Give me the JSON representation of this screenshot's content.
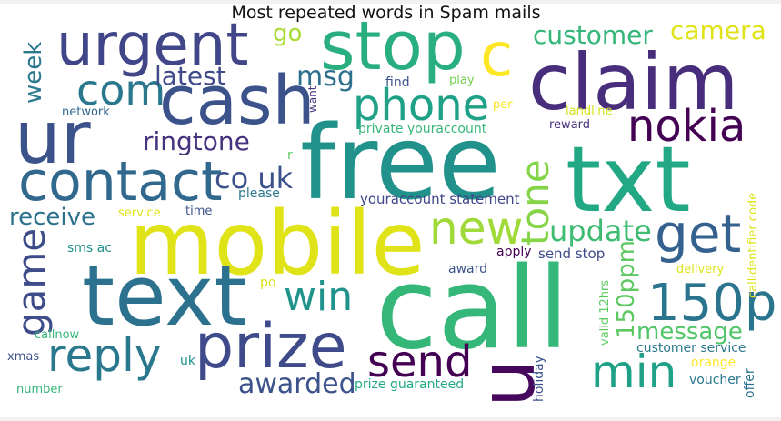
{
  "title": "Most repeated words in Spam mails",
  "colors": {
    "c1": "#440154",
    "c2": "#3b528b",
    "c3": "#21918c",
    "c4": "#5ec962",
    "c5": "#fde725"
  },
  "words": {
    "call": "call",
    "free": "free",
    "mobile": "mobile",
    "txt": "txt",
    "text": "text",
    "claim": "claim",
    "ur": "ur",
    "cash": "cash",
    "stop": "stop",
    "urgent": "urgent",
    "prize": "prize",
    "u": "u",
    "c": "c",
    "150p": "150p",
    "contact": "contact",
    "nokia": "nokia",
    "phone": "phone",
    "get": "get",
    "new": "new",
    "reply": "reply",
    "send": "send",
    "min": "min",
    "win": "win",
    "com": "com",
    "tone": "tone",
    "game": "game",
    "update": "update",
    "awarded": "awarded",
    "ringtone": "ringtone",
    "customer": "customer",
    "camera": "camera",
    "co_uk": "co uk",
    "week": "week",
    "receive": "receive",
    "150ppm": "150ppm",
    "latest": "latest",
    "message": "message",
    "msg": "msg",
    "go": "go",
    "find": "find",
    "play": "play",
    "want": "want",
    "per": "per",
    "network": "network",
    "landline": "landline",
    "private_youraccount": "private youraccount",
    "reward": "reward",
    "callidentifier_code": "callidentifier code",
    "r": "r",
    "please": "please",
    "youraccount_statement": "youraccount statement",
    "service": "service",
    "time": "time",
    "sms_ac": "sms ac",
    "apply": "apply",
    "send_stop": "send stop",
    "award": "award",
    "delivery": "delivery",
    "po": "po",
    "valid_12hrs": "valid 12hrs",
    "callnow": "callnow",
    "customer_service": "customer service",
    "xmas": "xmas",
    "uk": "uk",
    "holiday": "holiday",
    "orange": "orange",
    "voucher": "voucher",
    "offer": "offer",
    "number": "number",
    "prize_guaranteed": "prize guaranteed"
  }
}
